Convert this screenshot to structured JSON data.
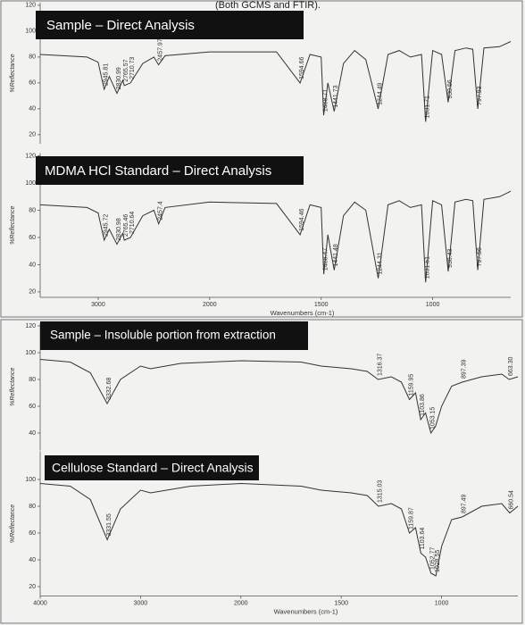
{
  "header": "(Both GCMS and FTIR).",
  "chart_data": [
    {
      "type": "line",
      "title": "Sample – Direct Analysis",
      "ylabel": "%Reflectance",
      "xlim": [
        3520,
        650
      ],
      "x_break": 2000,
      "ylim": [
        13,
        122
      ],
      "yticks": [
        20,
        40,
        60,
        80,
        100,
        120
      ],
      "color": "#333333",
      "x": [
        3520,
        3100,
        3000,
        2945.81,
        2900,
        2830.99,
        2780,
        2765.57,
        2710.73,
        2600,
        2500,
        2457.97,
        2400,
        2000,
        1700,
        1594.66,
        1550,
        1500,
        1488.71,
        1470,
        1441.73,
        1400,
        1350,
        1300,
        1244.49,
        1200,
        1150,
        1100,
        1050,
        1031.71,
        1000,
        960,
        930.56,
        900,
        850,
        820,
        797.93,
        770,
        700,
        650
      ],
      "values": [
        82,
        80,
        76,
        55,
        65,
        52,
        62,
        58,
        60,
        75,
        80,
        74,
        81,
        84,
        84,
        60,
        82,
        80,
        35,
        60,
        38,
        75,
        85,
        78,
        40,
        82,
        85,
        80,
        82,
        30,
        85,
        82,
        45,
        85,
        87,
        86,
        40,
        87,
        88,
        92
      ],
      "peaks": [
        2945.81,
        2830.99,
        2765.57,
        2710.73,
        2457.97,
        1594.66,
        1488.71,
        1441.73,
        1244.49,
        1031.71,
        930.56,
        797.93
      ]
    },
    {
      "type": "line",
      "title": "MDMA HCl Standard – Direct Analysis",
      "ylabel": "%Reflectance",
      "xlim": [
        3520,
        650
      ],
      "x_break": 2000,
      "ylim": [
        16,
        122
      ],
      "yticks": [
        20,
        40,
        60,
        80,
        100,
        120
      ],
      "xticks": [
        3000,
        2000,
        1500,
        1000
      ],
      "xlabel": "Wavenumbers (cm-1)",
      "color": "#333333",
      "x": [
        3520,
        3100,
        3000,
        2945.72,
        2900,
        2830.98,
        2780,
        2765.46,
        2710.64,
        2600,
        2500,
        2457.4,
        2400,
        2000,
        1700,
        1594.46,
        1550,
        1500,
        1488.47,
        1470,
        1441.48,
        1400,
        1350,
        1300,
        1244.31,
        1200,
        1150,
        1100,
        1050,
        1031.51,
        1000,
        960,
        930.43,
        900,
        850,
        820,
        797.56,
        770,
        700,
        650
      ],
      "values": [
        84,
        82,
        78,
        58,
        66,
        55,
        63,
        58,
        60,
        76,
        80,
        70,
        82,
        86,
        85,
        62,
        84,
        82,
        33,
        62,
        36,
        76,
        86,
        80,
        30,
        84,
        87,
        82,
        84,
        27,
        87,
        84,
        35,
        86,
        88,
        87,
        36,
        88,
        90,
        94
      ],
      "peaks": [
        2945.72,
        2830.98,
        2765.46,
        2710.64,
        2457.4,
        1594.46,
        1488.47,
        1441.48,
        1244.31,
        1031.51,
        930.43,
        797.56
      ]
    },
    {
      "type": "line",
      "title": "Sample – Insoluble portion from extraction",
      "ylabel": "%Reflectance",
      "xlim": [
        4000,
        620
      ],
      "x_break": 2000,
      "ylim": [
        27,
        122
      ],
      "yticks": [
        40,
        60,
        80,
        100,
        120
      ],
      "color": "#333333",
      "x": [
        4000,
        3700,
        3500,
        3332.68,
        3200,
        3000,
        2900,
        2600,
        2000,
        1700,
        1600,
        1450,
        1370,
        1316.37,
        1250,
        1200,
        1159.95,
        1130,
        1103.86,
        1080,
        1053.15,
        1030,
        1000,
        950,
        897.39,
        800,
        700,
        663.3,
        620
      ],
      "values": [
        95,
        93,
        85,
        62,
        80,
        90,
        88,
        92,
        94,
        93,
        90,
        88,
        86,
        80,
        82,
        78,
        65,
        70,
        50,
        55,
        40,
        45,
        60,
        75,
        78,
        82,
        84,
        80,
        82
      ],
      "peaks": [
        3332.68,
        1316.37,
        1159.95,
        1103.86,
        1053.15,
        897.39,
        {
          "value": 663.3,
          "label": "663.30"
        }
      ]
    },
    {
      "type": "line",
      "title": "Cellulose Standard – Direct Analysis",
      "ylabel": "%Reflectance",
      "xlim": [
        4000,
        620
      ],
      "x_break": 2000,
      "ylim": [
        13,
        121
      ],
      "yticks": [
        20,
        40,
        60,
        80,
        100
      ],
      "xticks": [
        4000,
        3000,
        2000,
        1500,
        1000
      ],
      "xlabel": "Wavenumbers (cm-1)",
      "color": "#333333",
      "x": [
        4000,
        3700,
        3500,
        3331.55,
        3200,
        3000,
        2900,
        2500,
        2000,
        1700,
        1600,
        1450,
        1370,
        1315.03,
        1250,
        1200,
        1159.87,
        1130,
        1103.64,
        1080,
        1052.77,
        1028.55,
        1000,
        950,
        897.49,
        800,
        700,
        660.54,
        620
      ],
      "values": [
        97,
        95,
        85,
        55,
        78,
        92,
        90,
        95,
        97,
        95,
        92,
        90,
        88,
        80,
        82,
        78,
        60,
        64,
        45,
        42,
        30,
        28,
        50,
        70,
        72,
        80,
        82,
        75,
        80
      ],
      "peaks": [
        3331.55,
        1315.03,
        1159.87,
        1103.64,
        1052.77,
        1028.55,
        897.49,
        660.54
      ]
    }
  ]
}
